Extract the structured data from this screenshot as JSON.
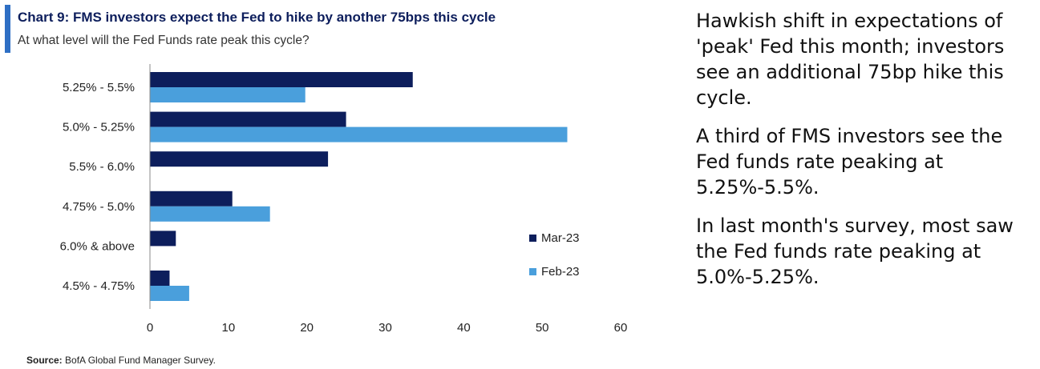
{
  "header": {
    "title": "Chart 9: FMS investors expect the Fed to hike by another 75bps this cycle",
    "subtitle": "At what level will the Fed Funds rate peak this cycle?"
  },
  "source": {
    "label": "Source:",
    "text": "BofA Global Fund Manager Survey."
  },
  "commentary": [
    "Hawkish shift in expectations of 'peak' Fed this month; investors see an additional 75bp hike this cycle.",
    "A third of FMS investors see the Fed funds rate peaking at 5.25%-5.5%.",
    "In last month's survey, most saw the Fed funds rate peaking at 5.0%-5.25%."
  ],
  "colors": {
    "accent_bar": "#2e6fc4",
    "mar23": "#0d1e5c",
    "feb23": "#4a9fdc"
  },
  "chart_data": {
    "type": "bar",
    "orientation": "horizontal",
    "title": "Chart 9: FMS investors expect the Fed to hike by another 75bps this cycle",
    "subtitle": "At what level will the Fed Funds rate peak this cycle?",
    "categories": [
      "5.25% - 5.5%",
      "5.0% - 5.25%",
      "5.5% - 6.0%",
      "4.75% - 5.0%",
      "6.0% & above",
      "4.5% - 4.75%"
    ],
    "series": [
      {
        "name": "Mar-23",
        "color": "#0d1e5c",
        "values": [
          33.5,
          25,
          22.7,
          10.5,
          3.3,
          2.5
        ]
      },
      {
        "name": "Feb-23",
        "color": "#4a9fdc",
        "values": [
          19.8,
          53.2,
          0,
          15.3,
          0,
          5
        ]
      }
    ],
    "xlim": [
      0,
      60
    ],
    "xticks": [
      "0",
      "10",
      "20",
      "30",
      "40",
      "50",
      "60"
    ],
    "xlabel": "",
    "ylabel": "",
    "grid": false,
    "legend": "right"
  }
}
